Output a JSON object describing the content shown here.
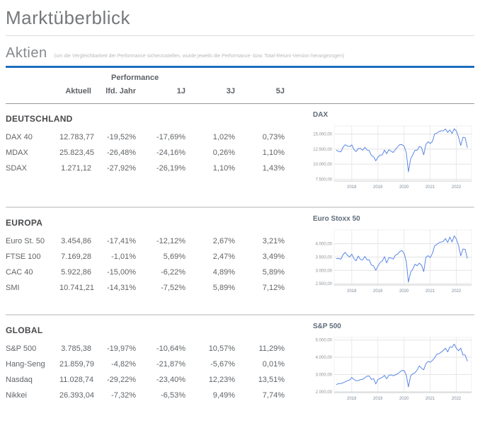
{
  "page": {
    "title": "Marktüberblick"
  },
  "aktien": {
    "heading": "Aktien",
    "note": "(um die Vergleichbarkeit der Performance sicherzustellen, wurde jeweils die Performance- bzw. Total-Return-Version herangezogen)"
  },
  "colors": {
    "accent": "#1d6fbd",
    "chart_line": "#5b87e5",
    "grid_line": "#e3e3e3",
    "axis_line": "#c9ccd0"
  },
  "table": {
    "group_header": "Performance",
    "columns": [
      "Aktuell",
      "lfd. Jahr",
      "1J",
      "3J",
      "5J"
    ],
    "sections": [
      {
        "name": "DEUTSCHLAND",
        "rows": [
          {
            "label": "DAX 40",
            "values": [
              "12.783,77",
              "-19,52%",
              "-17,69%",
              "1,02%",
              "0,73%"
            ]
          },
          {
            "label": "MDAX",
            "values": [
              "25.823,45",
              "-26,48%",
              "-24,16%",
              "0,26%",
              "1,10%"
            ]
          },
          {
            "label": "SDAX",
            "values": [
              "1.271,12",
              "-27,92%",
              "-26,19%",
              "1,10%",
              "1,43%"
            ]
          }
        ]
      },
      {
        "name": "EUROPA",
        "rows": [
          {
            "label": "Euro St. 50",
            "values": [
              "3.454,86",
              "-17,41%",
              "-12,12%",
              "2,67%",
              "3,21%"
            ]
          },
          {
            "label": "FTSE 100",
            "values": [
              "7.169,28",
              "-1,01%",
              "5,69%",
              "2,47%",
              "3,49%"
            ]
          },
          {
            "label": "CAC 40",
            "values": [
              "5.922,86",
              "-15,00%",
              "-6,22%",
              "4,89%",
              "5,89%"
            ]
          },
          {
            "label": "SMI",
            "values": [
              "10.741,21",
              "-14,31%",
              "-7,52%",
              "5,89%",
              "7,12%"
            ]
          }
        ]
      },
      {
        "name": "GLOBAL",
        "rows": [
          {
            "label": "S&P 500",
            "values": [
              "3.785,38",
              "-19,97%",
              "-10,64%",
              "10,57%",
              "11,29%"
            ]
          },
          {
            "label": "Hang-Seng",
            "values": [
              "21.859,79",
              "-4,82%",
              "-21,87%",
              "-5,67%",
              "0,01%"
            ]
          },
          {
            "label": "Nasdaq",
            "values": [
              "11.028,74",
              "-29,22%",
              "-23,40%",
              "12,23%",
              "13,51%"
            ]
          },
          {
            "label": "Nikkei",
            "values": [
              "26.393,04",
              "-7,32%",
              "-6,53%",
              "9,49%",
              "7,74%"
            ]
          }
        ]
      }
    ]
  },
  "chart_data": [
    {
      "type": "line",
      "title": "DAX",
      "x_start": 2017.42,
      "x_step": 0.08333,
      "xlim": [
        2017.33,
        2022.58
      ],
      "ylim": [
        7200,
        16350
      ],
      "x_ticks": [
        2018,
        2019,
        2020,
        2021,
        2022
      ],
      "x_tick_labels": [
        "2018",
        "2019",
        "2020",
        "2021",
        "2022"
      ],
      "y_ticks": [
        7500,
        10000,
        12500,
        15000
      ],
      "y_tick_labels": [
        "7.500,00",
        "10.000,00",
        "12.500,00",
        "15.000,00"
      ],
      "legend": "none",
      "grid": true,
      "values": [
        12325,
        12118,
        12056,
        12829,
        13230,
        13024,
        12918,
        13189,
        12436,
        12097,
        12612,
        12604,
        12306,
        12806,
        12364,
        12247,
        11447,
        11257,
        10559,
        11173,
        11516,
        11526,
        12344,
        11727,
        12399,
        12189,
        11939,
        12428,
        12867,
        13236,
        13249,
        12982,
        11890,
        8740,
        10862,
        11587,
        12311,
        12313,
        12945,
        12761,
        11556,
        13291,
        13719,
        13433,
        13786,
        15008,
        15136,
        15421,
        15531,
        15544,
        15835,
        15261,
        15689,
        15100,
        15885,
        15471,
        14461,
        13100,
        14450,
        14388,
        12784
      ]
    },
    {
      "type": "line",
      "title": "Euro Stoxx 50",
      "x_start": 2017.42,
      "x_step": 0.08333,
      "xlim": [
        2017.33,
        2022.58
      ],
      "ylim": [
        2450,
        4520
      ],
      "x_ticks": [
        2018,
        2019,
        2020,
        2021,
        2022
      ],
      "x_tick_labels": [
        "2018",
        "2019",
        "2020",
        "2021",
        "2022"
      ],
      "y_ticks": [
        2500,
        3000,
        3500,
        4000
      ],
      "y_tick_labels": [
        "2.500,00",
        "3.000,00",
        "3.500,00",
        "4.000,00"
      ],
      "legend": "none",
      "grid": true,
      "values": [
        3442,
        3449,
        3421,
        3595,
        3674,
        3570,
        3504,
        3609,
        3439,
        3362,
        3537,
        3407,
        3396,
        3525,
        3393,
        3399,
        3198,
        3173,
        3001,
        3160,
        3298,
        3352,
        3515,
        3280,
        3474,
        3467,
        3427,
        3569,
        3604,
        3704,
        3745,
        3641,
        3329,
        2560,
        2928,
        3050,
        3234,
        3174,
        3273,
        3194,
        2958,
        3493,
        3553,
        3481,
        3636,
        3919,
        3975,
        4039,
        4064,
        4089,
        4196,
        4048,
        4251,
        4063,
        4298,
        4175,
        3924,
        3550,
        3803,
        3789,
        3455
      ]
    },
    {
      "type": "line",
      "title": "S&P 500",
      "x_start": 2017.42,
      "x_step": 0.08333,
      "xlim": [
        2017.33,
        2022.58
      ],
      "ylim": [
        1950,
        5150
      ],
      "x_ticks": [
        2018,
        2019,
        2020,
        2021,
        2022
      ],
      "x_tick_labels": [
        "2018",
        "2019",
        "2020",
        "2021",
        "2022"
      ],
      "y_ticks": [
        2000,
        3000,
        4000,
        5000
      ],
      "y_tick_labels": [
        "2.000,00",
        "3.000,00",
        "4.000,00",
        "5.000,00"
      ],
      "legend": "none",
      "grid": true,
      "values": [
        2423,
        2470,
        2472,
        2519,
        2575,
        2648,
        2674,
        2824,
        2714,
        2641,
        2648,
        2705,
        2718,
        2816,
        2902,
        2914,
        2712,
        2760,
        2450,
        2704,
        2784,
        2834,
        2946,
        2752,
        2942,
        2980,
        2926,
        2977,
        3038,
        3141,
        3231,
        3226,
        2954,
        2280,
        2912,
        3044,
        3100,
        3271,
        3500,
        3363,
        3270,
        3622,
        3756,
        3714,
        3811,
        3973,
        4181,
        4204,
        4298,
        4395,
        4523,
        4308,
        4605,
        4567,
        4766,
        4516,
        4374,
        4530,
        4132,
        4132,
        3785
      ]
    }
  ]
}
